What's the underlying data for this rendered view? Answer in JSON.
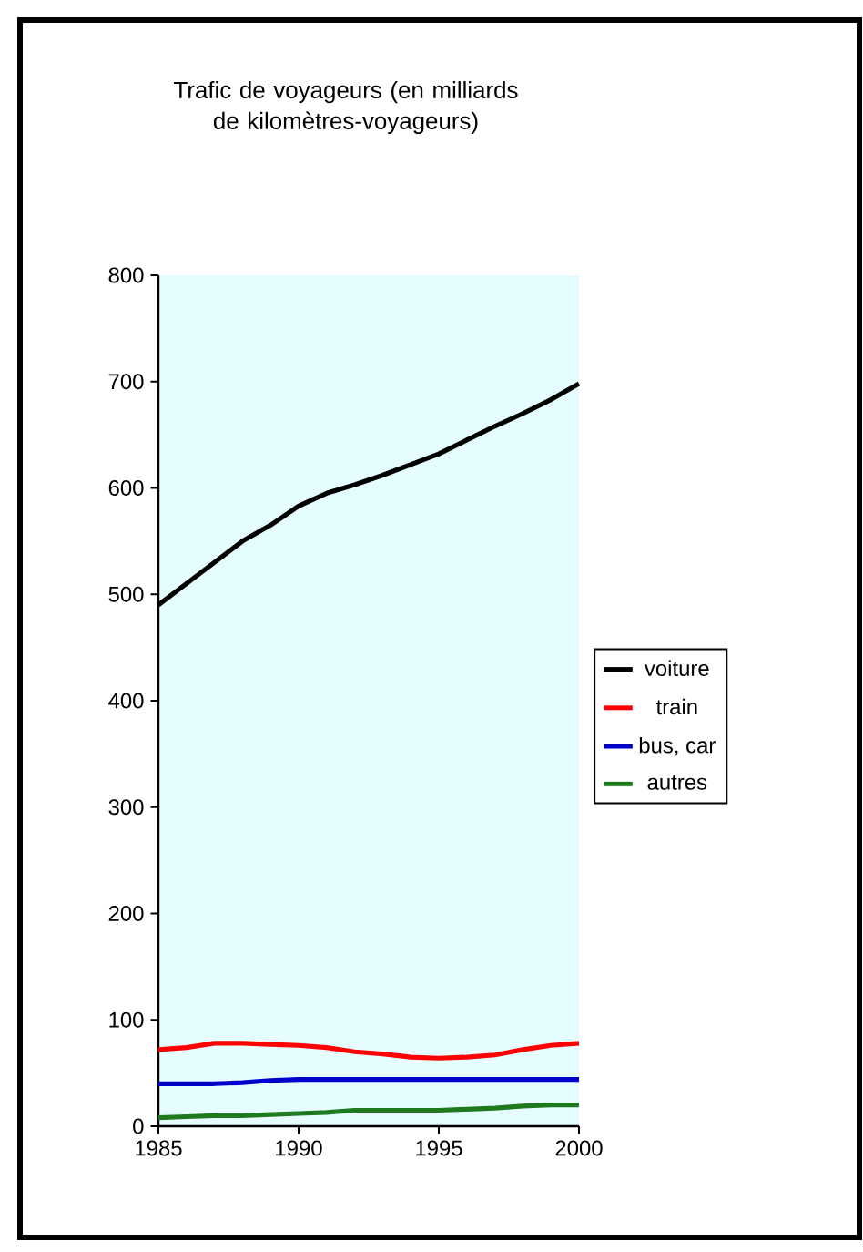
{
  "chart_data": {
    "type": "line",
    "title": "Trafic de voyageurs (en milliards de kilomètres-voyageurs)",
    "x": [
      1985,
      1986,
      1987,
      1988,
      1989,
      1990,
      1991,
      1992,
      1993,
      1994,
      1995,
      1996,
      1997,
      1998,
      1999,
      2000
    ],
    "series": [
      {
        "name": "voiture",
        "color": "#000000",
        "values": [
          490,
          510,
          530,
          550,
          565,
          583,
          595,
          603,
          612,
          622,
          632,
          645,
          658,
          670,
          683,
          698
        ]
      },
      {
        "name": "train",
        "color": "#ff0000",
        "values": [
          72,
          74,
          78,
          78,
          77,
          76,
          74,
          70,
          68,
          65,
          64,
          65,
          67,
          72,
          76,
          78
        ]
      },
      {
        "name": "bus, car",
        "color": "#0000cc",
        "values": [
          40,
          40,
          40,
          41,
          43,
          44,
          44,
          44,
          44,
          44,
          44,
          44,
          44,
          44,
          44,
          44
        ]
      },
      {
        "name": "autres",
        "color": "#1f7a1f",
        "values": [
          8,
          9,
          10,
          10,
          11,
          12,
          13,
          15,
          15,
          15,
          15,
          16,
          17,
          19,
          20,
          20
        ]
      }
    ],
    "xlim": [
      1985,
      2000
    ],
    "xticks": [
      1985,
      1990,
      1995,
      2000
    ],
    "ylim": [
      0,
      800
    ],
    "yticks": [
      0,
      100,
      200,
      300,
      400,
      500,
      600,
      700,
      800
    ],
    "legend": "right",
    "grid": false
  }
}
